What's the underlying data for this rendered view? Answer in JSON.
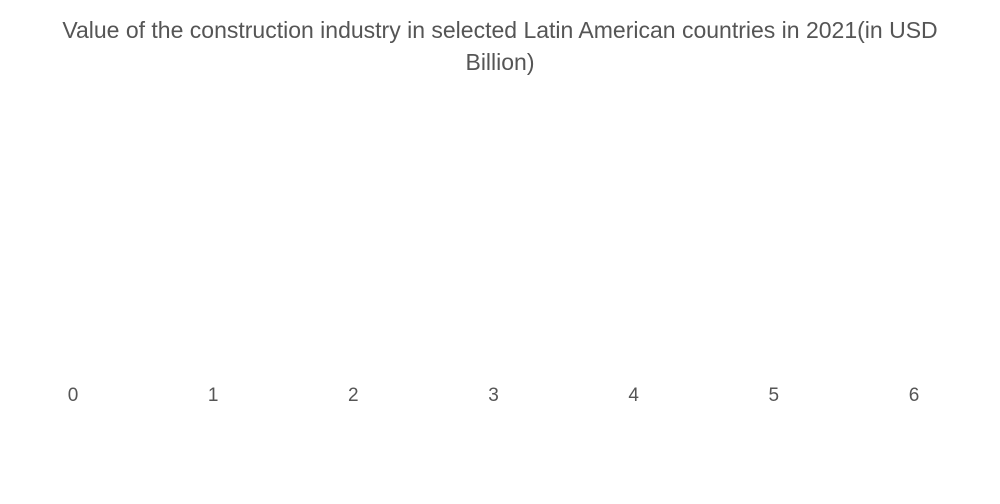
{
  "chart_data": {
    "type": "bar",
    "title": "Value of the construction industry in selected Latin American countries in 2021(in USD Billion)",
    "xlim": [
      0,
      6
    ],
    "xticks": [
      0,
      1,
      2,
      3,
      4,
      5,
      6
    ]
  }
}
